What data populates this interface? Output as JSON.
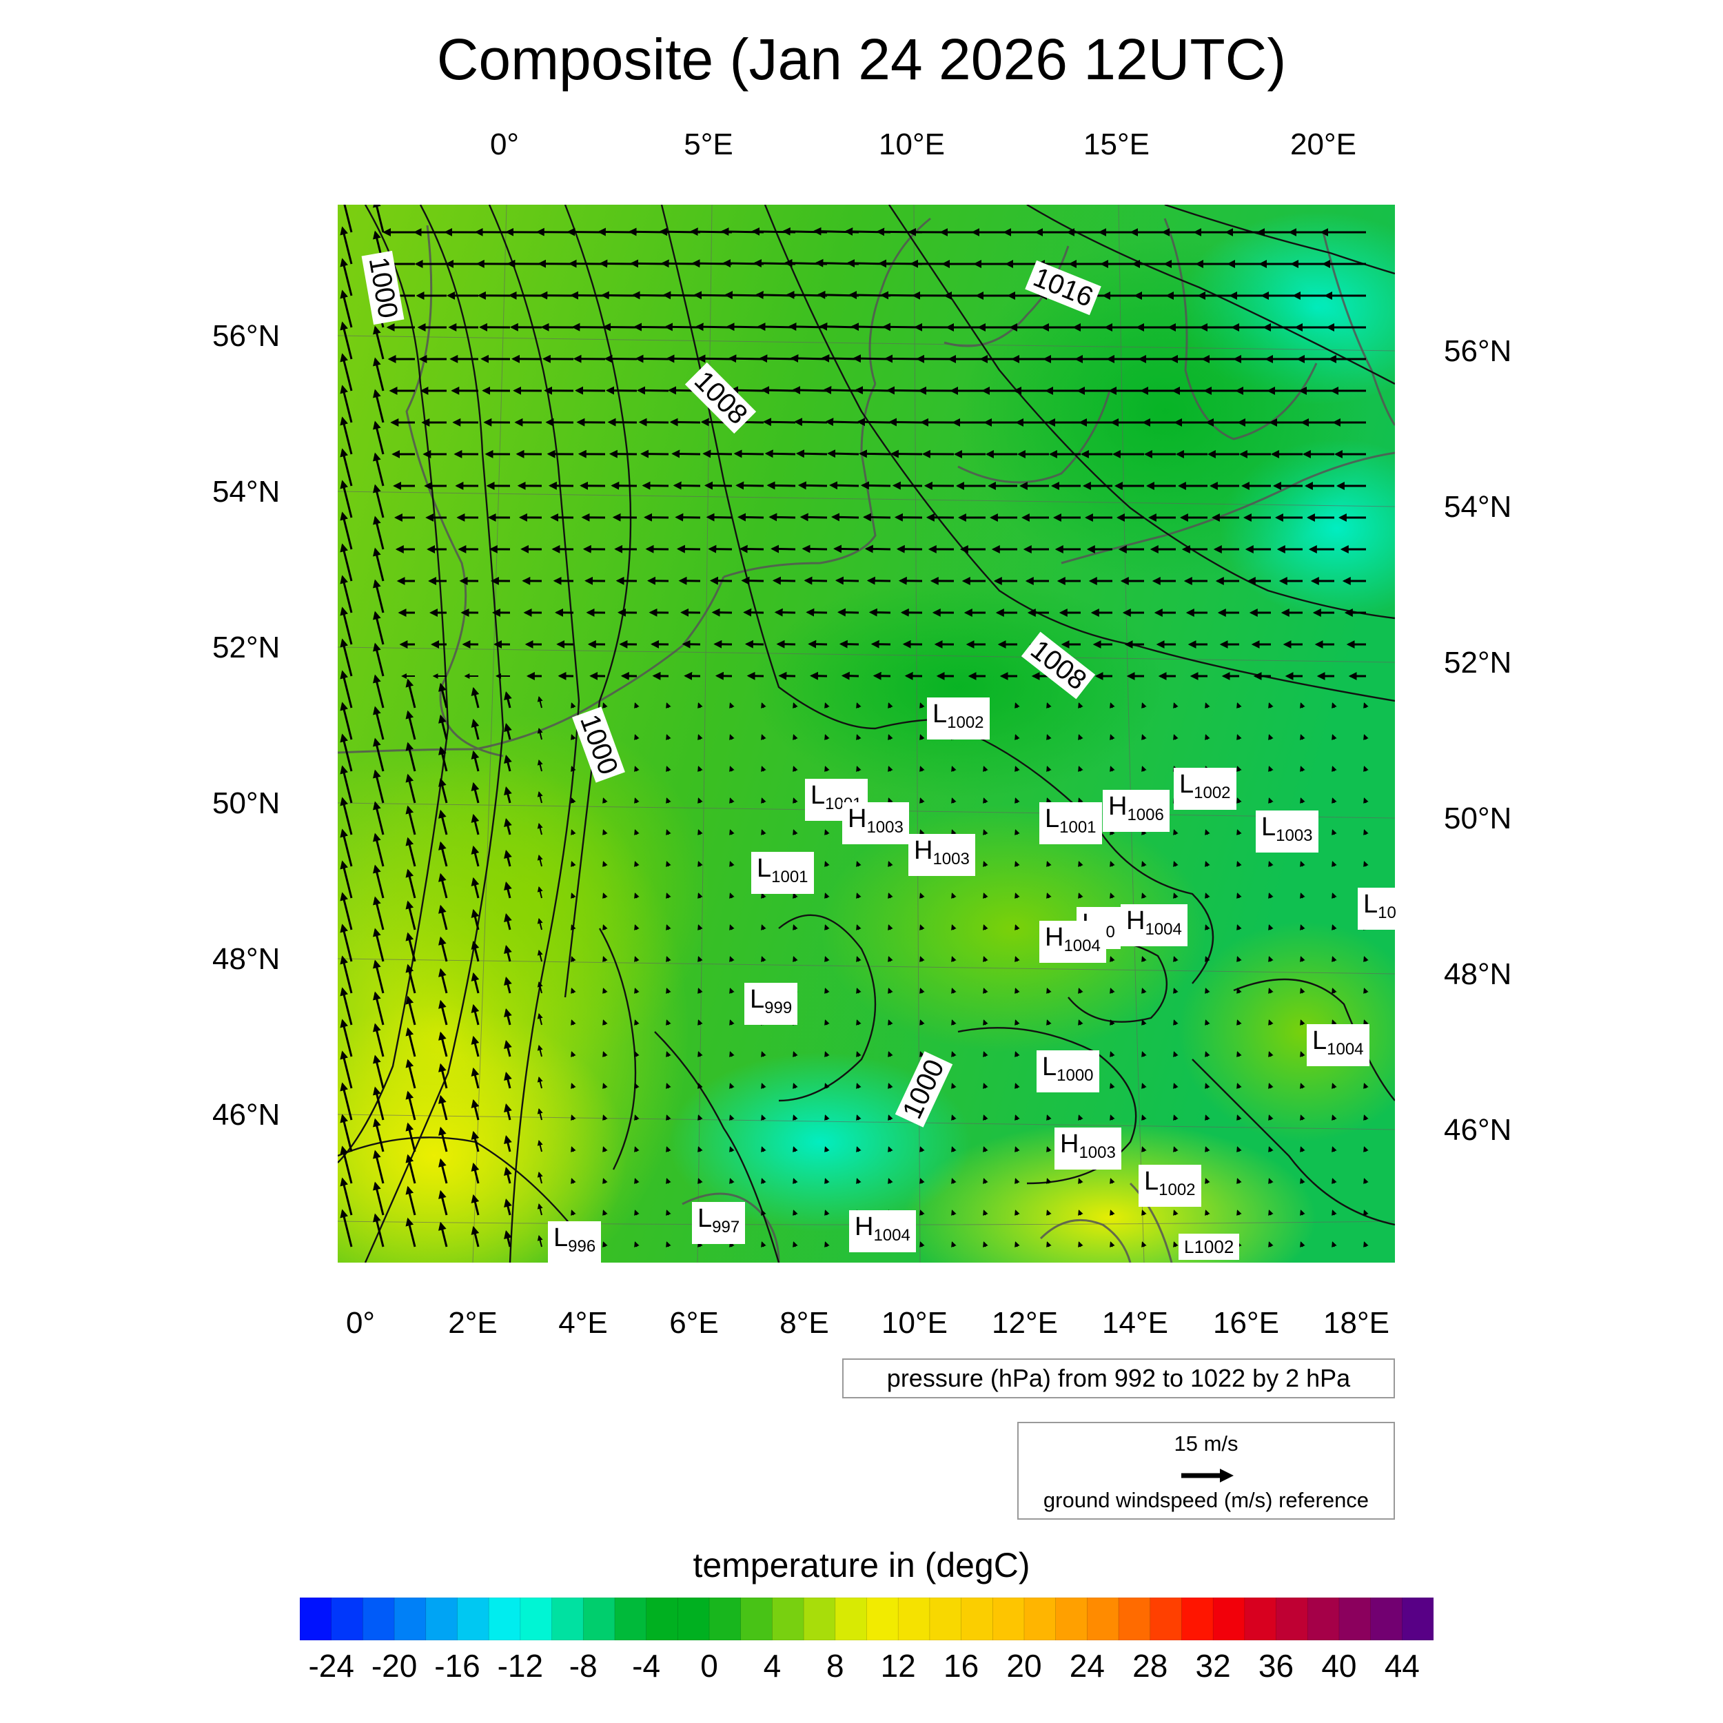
{
  "title": "Composite (Jan 24 2026 12UTC)",
  "top_axis_labels": [
    "0°",
    "5°E",
    "10°E",
    "15°E",
    "20°E"
  ],
  "bottom_axis_labels": [
    "0°",
    "2°E",
    "4°E",
    "6°E",
    "8°E",
    "10°E",
    "12°E",
    "14°E",
    "16°E",
    "18°E"
  ],
  "left_axis_labels": [
    "56°N",
    "54°N",
    "52°N",
    "50°N",
    "48°N",
    "46°N"
  ],
  "right_axis_labels": [
    "56°N",
    "54°N",
    "52°N",
    "50°N",
    "48°N",
    "46°N"
  ],
  "isobar_labels": [
    "1000",
    "1008",
    "1016",
    "1008",
    "1000",
    "1000"
  ],
  "pressure_centers": [
    {
      "type": "L",
      "value": "1002"
    },
    {
      "type": "L",
      "value": "1001"
    },
    {
      "type": "H",
      "value": "1003"
    },
    {
      "type": "H",
      "value": "1003"
    },
    {
      "type": "L",
      "value": "1001"
    },
    {
      "type": "H",
      "value": "1006"
    },
    {
      "type": "L",
      "value": "1002"
    },
    {
      "type": "L",
      "value": "1003"
    },
    {
      "type": "L",
      "value": "1001"
    },
    {
      "type": "L",
      "value": "10"
    },
    {
      "type": "L",
      "value": "10"
    },
    {
      "type": "H",
      "value": "1004"
    },
    {
      "type": "H",
      "value": "1004"
    },
    {
      "type": "L",
      "value": "999"
    },
    {
      "type": "L",
      "value": "1004"
    },
    {
      "type": "L",
      "value": "1000"
    },
    {
      "type": "H",
      "value": "1003"
    },
    {
      "type": "L",
      "value": "1002"
    },
    {
      "type": "L",
      "value": "997"
    },
    {
      "type": "L",
      "value": "996"
    },
    {
      "type": "H",
      "value": "1004"
    },
    {
      "type": "L",
      "value": "1002"
    }
  ],
  "pressure_caption": "pressure (hPa) from 992 to 1022 by 2 hPa",
  "wind_reference": {
    "speed_label": "15 m/s",
    "caption": "ground windspeed (m/s) reference"
  },
  "colorbar": {
    "title": "temperature in (degC)",
    "min": -26,
    "max": 46,
    "step": 2,
    "labels": [
      "-24",
      "-20",
      "-16",
      "-12",
      "-8",
      "-4",
      "0",
      "4",
      "8",
      "12",
      "16",
      "20",
      "24",
      "28",
      "32",
      "36",
      "40",
      "44"
    ]
  },
  "colors": {
    "cold_blue": "#0000ff",
    "cyan": "#00ffee",
    "green": "#00b020",
    "yellow": "#f0f000",
    "orange": "#ff8000",
    "red": "#ff0000",
    "purple": "#4b0090"
  }
}
